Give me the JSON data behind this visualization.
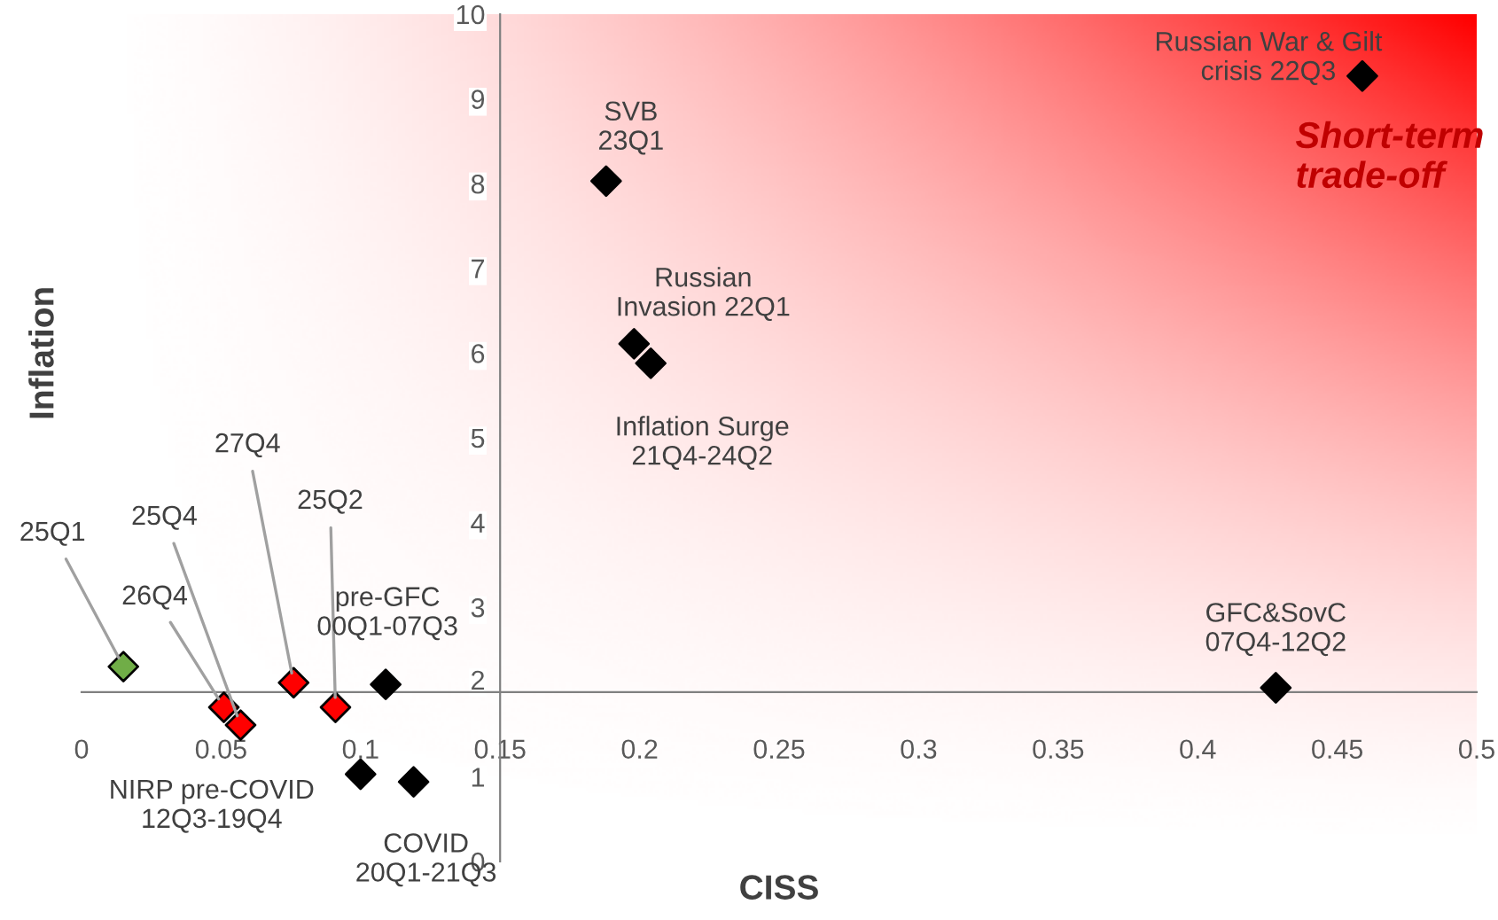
{
  "chart_data": {
    "type": "scatter",
    "xlabel": "CISS",
    "ylabel": "Inflation",
    "x": [
      0.015,
      0.051,
      0.057,
      0.076,
      0.091,
      0.109,
      0.1,
      0.119,
      0.188,
      0.198,
      0.204,
      0.459,
      0.428
    ],
    "values": [
      2.3,
      1.82,
      1.61,
      2.11,
      1.82,
      2.09,
      1.03,
      0.94,
      8.03,
      6.11,
      5.88,
      9.27,
      2.05
    ],
    "colors": [
      "#70ad47",
      "#ff0000",
      "#ff0000",
      "#ff0000",
      "#ff0000",
      "#000000",
      "#000000",
      "#000000",
      "#000000",
      "#000000",
      "#000000",
      "#000000",
      "#000000"
    ],
    "marker": "diamond",
    "xlim": [
      0,
      0.5
    ],
    "ylim": [
      0,
      10
    ],
    "xticks": [
      0,
      0.05,
      0.1,
      0.15,
      0.2,
      0.25,
      0.3,
      0.35,
      0.4,
      0.45,
      0.5
    ],
    "yticks": [
      0,
      1,
      2,
      3,
      4,
      5,
      6,
      7,
      8,
      9,
      10
    ],
    "grid": false,
    "annotations": [
      {
        "text": "25Q1",
        "x": 0.015,
        "y": 2.3
      },
      {
        "text": "26Q4",
        "x": 0.051,
        "y": 1.82
      },
      {
        "text": "25Q4",
        "x": 0.057,
        "y": 1.61
      },
      {
        "text": "27Q4",
        "x": 0.076,
        "y": 2.11
      },
      {
        "text": "25Q2",
        "x": 0.091,
        "y": 1.82
      },
      {
        "text": "pre-GFC\n00Q1-07Q3",
        "x": 0.109,
        "y": 2.09
      },
      {
        "text": "NIRP pre-COVID\n12Q3-19Q4",
        "x": 0.1,
        "y": 1.03
      },
      {
        "text": "COVID\n20Q1-21Q3",
        "x": 0.119,
        "y": 0.94
      },
      {
        "text": "SVB\n23Q1",
        "x": 0.188,
        "y": 8.03
      },
      {
        "text": "Russian\nInvasion 22Q1",
        "x": 0.198,
        "y": 6.11
      },
      {
        "text": "Inflation Surge\n21Q4-24Q2",
        "x": 0.204,
        "y": 5.88
      },
      {
        "text": "Russian War & Gilt\ncrisis 22Q3",
        "x": 0.459,
        "y": 9.27
      },
      {
        "text": "GFC&SovC\n07Q4-12Q2",
        "x": 0.428,
        "y": 2.05
      },
      "Short-term\ntrade-off"
    ]
  }
}
